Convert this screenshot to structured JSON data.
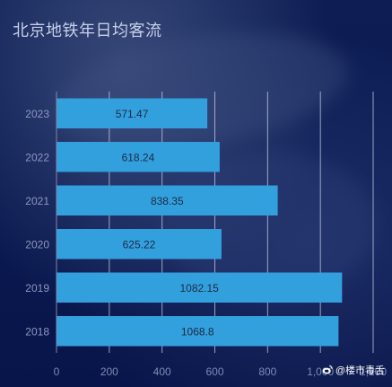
{
  "title": "北京地铁年日均客流",
  "watermark": "@楼市毒舌",
  "chart_data": {
    "type": "bar",
    "orientation": "horizontal",
    "categories": [
      "2023",
      "2022",
      "2021",
      "2020",
      "2019",
      "2018"
    ],
    "values": [
      571.47,
      618.24,
      838.35,
      625.22,
      1082.15,
      1068.8
    ],
    "value_labels": [
      "571.47",
      "618.24",
      "838.35",
      "625.22",
      "1082.15",
      "1068.8"
    ],
    "xlim": [
      0,
      1200
    ],
    "xticks": [
      "0",
      "200",
      "400",
      "600",
      "800",
      "1,000",
      "1,200"
    ],
    "grid": "vertical",
    "bar_color": "#33a0de"
  }
}
